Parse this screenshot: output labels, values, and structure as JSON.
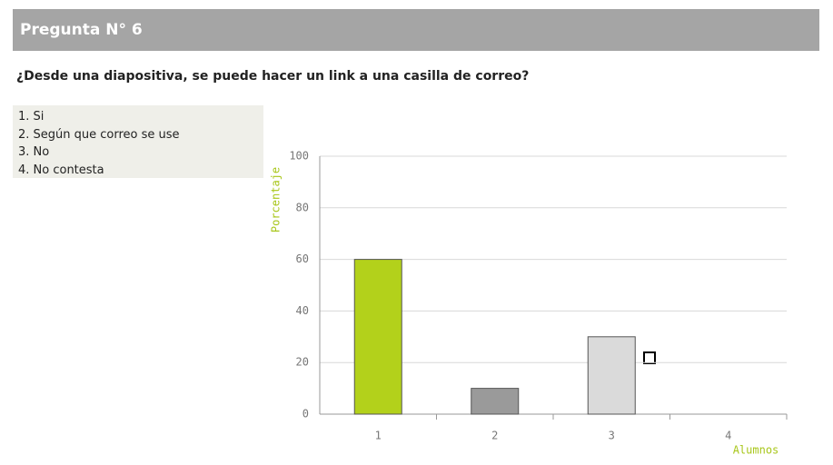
{
  "header": {
    "title": "Pregunta N° 6"
  },
  "question": "¿Desde una diapositiva, se puede hacer un link a una casilla de correo?",
  "options": [
    "1. Si",
    "2. Según que correo se use",
    "3. No",
    "4. No contesta"
  ],
  "chart_data": {
    "type": "bar",
    "categories": [
      "1",
      "2",
      "3",
      "4"
    ],
    "values": [
      60,
      10,
      30,
      0
    ],
    "colors": [
      "#b3d11b",
      "#9a9a9a",
      "#dadada",
      "#dadada"
    ],
    "ylim": [
      0,
      100
    ],
    "yticks": [
      0,
      20,
      40,
      60,
      80,
      100
    ],
    "grid": true,
    "y_label": "Porcentaje",
    "x_label": "Alumnos"
  }
}
